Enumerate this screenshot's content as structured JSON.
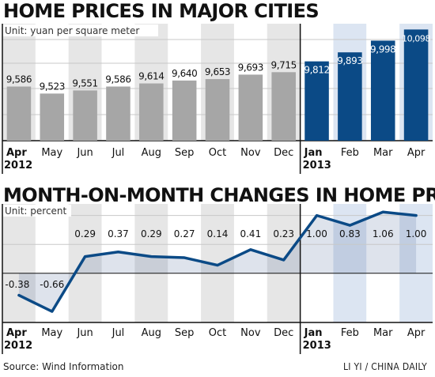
{
  "charts": {
    "bar_title": "HOME PRICES IN MAJOR CITIES",
    "line_title": "MONTH-ON-MONTH CHANGES IN HOME PRICES",
    "source": "Source: Wind Information",
    "credit": "LI YI / CHINA DAILY"
  },
  "colors": {
    "bar_2012": "#a6a6a6",
    "bar_2013": "#0b4a86",
    "line": "#0b4a86",
    "band_light": "#e6e6e6",
    "band_2013": "#dce5f2"
  },
  "chart_data": [
    {
      "type": "bar",
      "title": "HOME PRICES IN MAJOR CITIES",
      "unit": "Unit: yuan per square meter",
      "categories": [
        "Apr",
        "May",
        "Jun",
        "Jul",
        "Aug",
        "Sep",
        "Oct",
        "Nov",
        "Dec",
        "Jan",
        "Feb",
        "Mar",
        "Apr"
      ],
      "year_labels": [
        "2012",
        "2013"
      ],
      "value_labels": [
        "9,586",
        "9,523",
        "9,551",
        "9,586",
        "9,614",
        "9,640",
        "9,653",
        "9,693",
        "9,715",
        "9,812",
        "9,893",
        "9,998",
        "10,098"
      ],
      "values": [
        9586,
        9523,
        9551,
        9586,
        9614,
        9640,
        9653,
        9693,
        9715,
        9812,
        9893,
        9998,
        10098
      ],
      "ylim": [
        9100,
        10150
      ],
      "grid": true
    },
    {
      "type": "line",
      "title": "MONTH-ON-MONTH CHANGES IN HOME PRICES",
      "unit": "Unit: percent",
      "categories": [
        "Apr",
        "May",
        "Jun",
        "Jul",
        "Aug",
        "Sep",
        "Oct",
        "Nov",
        "Dec",
        "Jan",
        "Feb",
        "Mar",
        "Apr"
      ],
      "year_labels": [
        "2012",
        "2013"
      ],
      "value_labels": [
        "-0.38",
        "-0.66",
        "0.29",
        "0.37",
        "0.29",
        "0.27",
        "0.14",
        "0.41",
        "0.23",
        "1.00",
        "0.83",
        "1.06",
        "1.00"
      ],
      "values": [
        -0.38,
        -0.66,
        0.29,
        0.37,
        0.29,
        0.27,
        0.14,
        0.41,
        0.23,
        1.0,
        0.83,
        1.06,
        1.0
      ],
      "ylim": [
        -0.85,
        1.2
      ],
      "grid": true
    }
  ]
}
